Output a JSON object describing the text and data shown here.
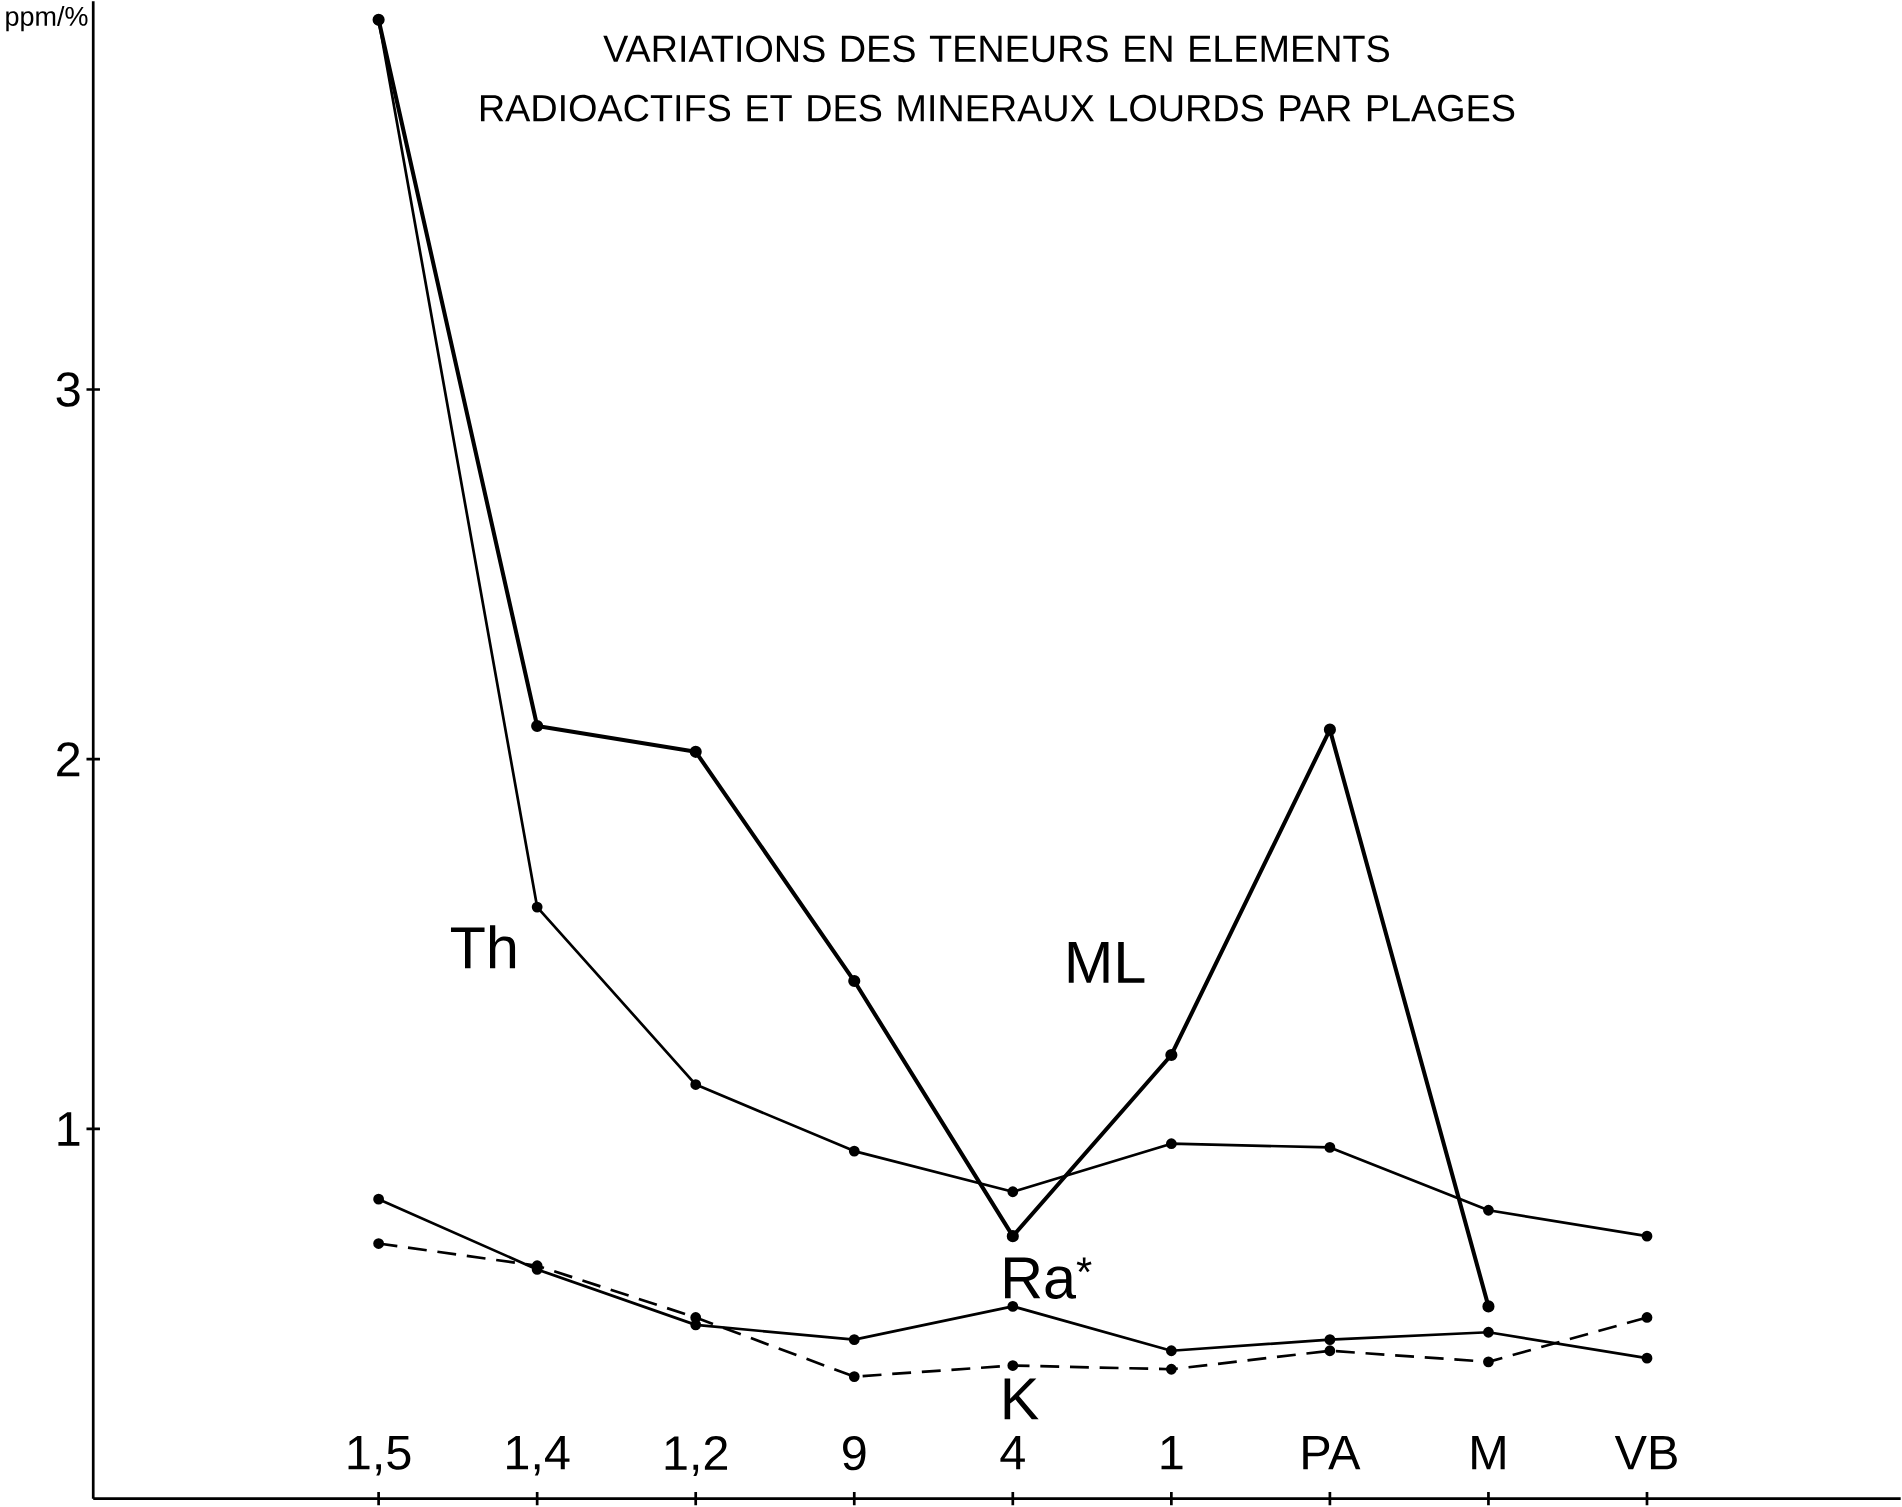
{
  "chart_data": {
    "type": "line",
    "title": "VARIATIONS DES TENEURS EN ELEMENTS RADIOACTIFS ET DES MINERAUX LOURDS PAR PLAGES",
    "ylabel": "ppm/%",
    "categories": [
      "1,5",
      "1,4",
      "1,2",
      "9",
      "4",
      "1",
      "PA",
      "M",
      "VB"
    ],
    "ylim": [
      0,
      4.05
    ],
    "yticks": [
      1,
      2,
      3
    ],
    "series": [
      {
        "name": "ML",
        "color": "#000000",
        "marker": "circle",
        "line_style": "solid",
        "values": [
          4.0,
          2.09,
          2.02,
          1.4,
          0.71,
          1.2,
          2.08,
          0.52,
          null
        ]
      },
      {
        "name": "Th",
        "color": "#000000",
        "marker": "circle",
        "line_style": "solid",
        "values": [
          4.0,
          1.6,
          1.12,
          0.94,
          0.83,
          0.96,
          0.95,
          0.78,
          0.71
        ]
      },
      {
        "name": "Ra$^{*}$",
        "color": "#000000",
        "marker": "circle",
        "line_style": "solid",
        "values": [
          0.81,
          0.62,
          0.47,
          0.43,
          0.52,
          0.4,
          0.43,
          0.45,
          0.38
        ]
      },
      {
        "name": "K",
        "color": "#000000",
        "marker": "circle",
        "line_style": "dashed",
        "values": [
          0.69,
          0.63,
          0.49,
          0.33,
          0.36,
          0.35,
          0.4,
          0.37,
          0.49
        ]
      }
    ]
  }
}
